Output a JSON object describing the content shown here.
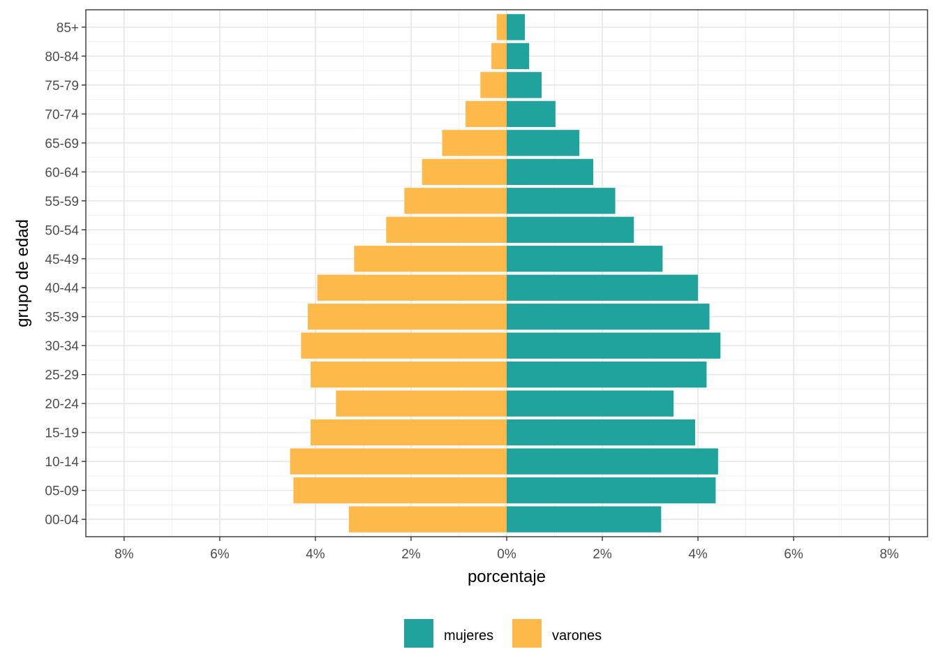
{
  "chart_data": {
    "type": "bar",
    "orientation": "horizontal",
    "layout": "population-pyramid",
    "categories": [
      "00-04",
      "05-09",
      "10-14",
      "15-19",
      "20-24",
      "25-29",
      "30-34",
      "35-39",
      "40-44",
      "45-49",
      "50-54",
      "55-59",
      "60-64",
      "65-69",
      "70-74",
      "75-79",
      "80-84",
      "85+"
    ],
    "series": [
      {
        "name": "mujeres",
        "color": "#21a39d",
        "side": "right",
        "values": [
          3.23,
          4.37,
          4.42,
          3.94,
          3.49,
          4.18,
          4.47,
          4.24,
          4.0,
          3.26,
          2.66,
          2.27,
          1.81,
          1.52,
          1.02,
          0.73,
          0.47,
          0.38
        ]
      },
      {
        "name": "varones",
        "color": "#feb94b",
        "side": "left",
        "values": [
          3.3,
          4.46,
          4.53,
          4.1,
          3.57,
          4.1,
          4.3,
          4.16,
          3.96,
          3.19,
          2.52,
          2.14,
          1.77,
          1.35,
          0.86,
          0.55,
          0.32,
          0.21
        ]
      }
    ],
    "xlabel": "porcentaje",
    "ylabel": "grupo de edad",
    "xlim": [
      -8.8,
      8.8
    ],
    "xticks": [
      -8,
      -6,
      -4,
      -2,
      0,
      2,
      4,
      6,
      8
    ],
    "xtick_labels": [
      "8%",
      "6%",
      "4%",
      "2%",
      "0%",
      "2%",
      "4%",
      "6%",
      "8%"
    ],
    "grid": true,
    "legend_position": "bottom"
  }
}
